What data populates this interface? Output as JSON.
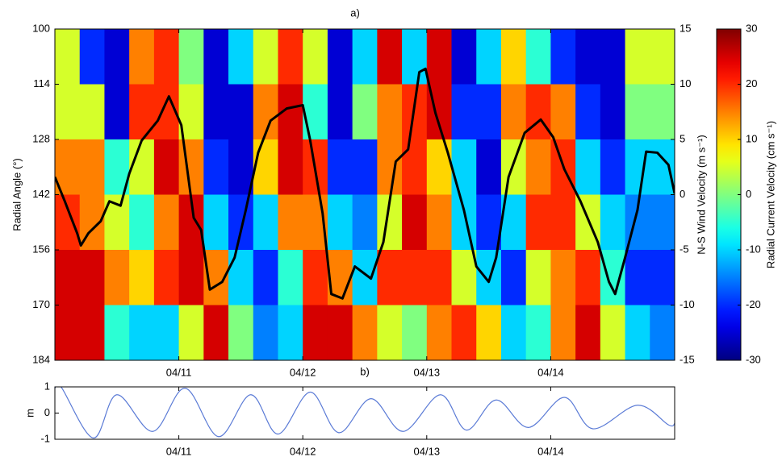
{
  "chart_data": [
    {
      "type": "heatmap",
      "title": "a)",
      "ylabel": "Radial Angle (°)",
      "y2label": "N-S Wind Velocity (m s⁻¹)",
      "colorbar_label": "Radial Current Velocity (cm s⁻¹)",
      "colormap": "jet",
      "clim": [
        -30,
        30
      ],
      "cticks": [
        -30,
        -20,
        -10,
        0,
        10,
        20,
        30
      ],
      "xlim": [
        10,
        15
      ],
      "xticks": [
        {
          "value": 11,
          "label": "04/11"
        },
        {
          "value": 12,
          "label": "04/12"
        },
        {
          "value": 13,
          "label": "04/13"
        },
        {
          "value": 14,
          "label": "04/14"
        }
      ],
      "ylim": [
        184,
        100
      ],
      "yticks": [
        100,
        114,
        128,
        142,
        156,
        170,
        184
      ],
      "y2lim": [
        -15,
        15
      ],
      "y2ticks": [
        -15,
        -10,
        -5,
        0,
        5,
        10,
        15
      ],
      "x_edges": [
        10,
        10.2,
        10.4,
        10.6,
        10.8,
        11,
        11.2,
        11.4,
        11.6,
        11.8,
        12,
        12.2,
        12.4,
        12.6,
        12.8,
        13,
        13.2,
        13.4,
        13.6,
        13.8,
        14,
        14.2,
        14.4,
        14.6,
        14.8,
        15
      ],
      "y_edges": [
        100,
        114,
        128,
        142,
        156,
        170,
        184
      ],
      "z": [
        [
          5,
          -20,
          -25,
          15,
          20,
          0,
          -25,
          -10,
          5,
          20,
          5,
          -25,
          -10,
          25,
          -10,
          25,
          -25,
          -10,
          10,
          -5,
          -20,
          -25,
          -25,
          5,
          5
        ],
        [
          5,
          5,
          -25,
          20,
          20,
          5,
          -25,
          -25,
          15,
          25,
          -5,
          -25,
          0,
          15,
          20,
          25,
          -20,
          -20,
          15,
          20,
          15,
          -20,
          -25,
          0,
          0
        ],
        [
          15,
          15,
          -5,
          5,
          25,
          15,
          -20,
          -25,
          10,
          25,
          20,
          -20,
          -20,
          15,
          20,
          10,
          -10,
          -25,
          5,
          15,
          20,
          -10,
          -20,
          -10,
          -10
        ],
        [
          20,
          15,
          5,
          -5,
          15,
          25,
          -10,
          -20,
          -10,
          15,
          15,
          -10,
          -15,
          5,
          25,
          15,
          -10,
          -20,
          -10,
          20,
          20,
          5,
          -10,
          -15,
          -15
        ],
        [
          25,
          25,
          15,
          10,
          20,
          25,
          15,
          -10,
          -20,
          -5,
          20,
          15,
          -10,
          20,
          20,
          20,
          5,
          -10,
          -20,
          5,
          15,
          20,
          -5,
          -20,
          -20
        ],
        [
          25,
          25,
          -5,
          -10,
          -10,
          5,
          25,
          0,
          -15,
          -10,
          25,
          25,
          15,
          5,
          0,
          15,
          20,
          10,
          -10,
          -5,
          15,
          25,
          5,
          -10,
          -15
        ]
      ],
      "series": [
        {
          "color": "#000000",
          "axis": "y2",
          "x": [
            10,
            10.08,
            10.18,
            10.21,
            10.27,
            10.37,
            10.44,
            10.53,
            10.6,
            10.7,
            10.83,
            10.92,
            11.02,
            11.12,
            11.18,
            11.25,
            11.35,
            11.45,
            11.54,
            11.64,
            11.74,
            11.87,
            12,
            12.06,
            12.16,
            12.23,
            12.32,
            12.42,
            12.55,
            12.65,
            12.75,
            12.85,
            12.94,
            12.99,
            13.07,
            13.17,
            13.3,
            13.4,
            13.5,
            13.56,
            13.66,
            13.79,
            13.92,
            14.02,
            14.11,
            14.24,
            14.38,
            14.47,
            14.52,
            14.6,
            14.7,
            14.77,
            14.86,
            14.95,
            15
          ],
          "values": [
            1.6,
            -0.6,
            -3.5,
            -4.6,
            -3.5,
            -2.4,
            -0.6,
            -1,
            1.9,
            4.9,
            6.7,
            8.9,
            6.3,
            -2.1,
            -3.2,
            -8.6,
            -7.9,
            -5.7,
            -1.4,
            3.8,
            6.7,
            7.8,
            8.1,
            4.9,
            -1.7,
            -9,
            -9.4,
            -6.5,
            -7.6,
            -4.3,
            3,
            4.1,
            11.1,
            11.4,
            7.4,
            3.8,
            -1.4,
            -6.5,
            -7.9,
            -5.7,
            1.6,
            5.6,
            6.8,
            5.2,
            2.3,
            -0.6,
            -4.3,
            -7.9,
            -9,
            -5.7,
            -1.4,
            3.9,
            3.8,
            2.7,
            0.1
          ]
        }
      ]
    },
    {
      "type": "line",
      "title": "b)",
      "ylabel": "m",
      "xlim": [
        10,
        15
      ],
      "xticks": [
        {
          "value": 11,
          "label": "04/11"
        },
        {
          "value": 12,
          "label": "04/12"
        },
        {
          "value": 13,
          "label": "04/13"
        },
        {
          "value": 14,
          "label": "04/14"
        }
      ],
      "ylim": [
        -1,
        1
      ],
      "yticks": [
        -1,
        0,
        1
      ],
      "series": [
        {
          "color": "#5b7bd6",
          "x": [
            10,
            10.05,
            10.31,
            10.5,
            10.79,
            11.05,
            11.32,
            11.58,
            11.8,
            12.06,
            12.29,
            12.55,
            12.81,
            13.11,
            13.32,
            13.56,
            13.82,
            14.11,
            14.34,
            14.7,
            14.95,
            15
          ],
          "values": [
            0.95,
            1,
            -0.95,
            0.7,
            -0.7,
            0.95,
            -0.9,
            0.7,
            -0.8,
            0.8,
            -0.75,
            0.55,
            -0.7,
            0.7,
            -0.65,
            0.5,
            -0.55,
            0.6,
            -0.6,
            0.3,
            -0.45,
            -0.4
          ]
        }
      ]
    }
  ]
}
